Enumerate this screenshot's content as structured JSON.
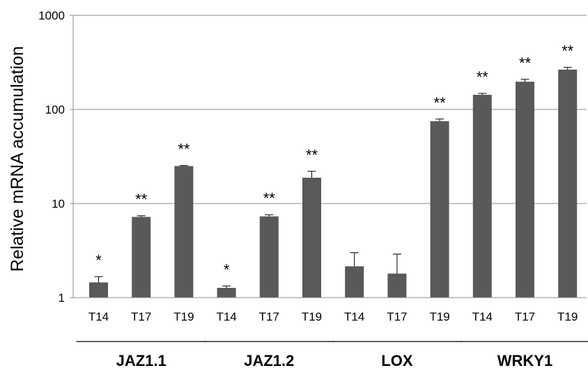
{
  "chart_data": {
    "type": "bar",
    "title": "",
    "xlabel": "",
    "ylabel": "Relative mRNA accumulation",
    "yscale": "log",
    "ylim": [
      1,
      1000
    ],
    "yticks": [
      {
        "value": 1,
        "label": "1"
      },
      {
        "value": 10,
        "label": "10"
      },
      {
        "value": 100,
        "label": "100"
      },
      {
        "value": 1000,
        "label": "1000"
      }
    ],
    "grid": "horizontal",
    "bar_color": "#595959",
    "groups": [
      {
        "label": "JAZ1.1",
        "bars": [
          {
            "category": "T14",
            "value": 1.45,
            "error": 0.22,
            "significance": "*"
          },
          {
            "category": "T17",
            "value": 7.2,
            "error": 0.2,
            "significance": "**"
          },
          {
            "category": "T19",
            "value": 25.0,
            "error": 0.3,
            "significance": "**"
          }
        ]
      },
      {
        "label": "JAZ1.2",
        "bars": [
          {
            "category": "T14",
            "value": 1.27,
            "error": 0.06,
            "significance": "*"
          },
          {
            "category": "T17",
            "value": 7.3,
            "error": 0.3,
            "significance": "**"
          },
          {
            "category": "T19",
            "value": 18.8,
            "error": 3.2,
            "significance": "**"
          }
        ]
      },
      {
        "label": "LOX",
        "bars": [
          {
            "category": "T14",
            "value": 2.15,
            "error": 0.85,
            "significance": ""
          },
          {
            "category": "T17",
            "value": 1.8,
            "error": 1.1,
            "significance": ""
          },
          {
            "category": "T19",
            "value": 75.0,
            "error": 4.0,
            "significance": "**"
          }
        ]
      },
      {
        "label": "WRKY1",
        "bars": [
          {
            "category": "T14",
            "value": 143.0,
            "error": 5.0,
            "significance": "**"
          },
          {
            "category": "T17",
            "value": 197.0,
            "error": 12.0,
            "significance": "**"
          },
          {
            "category": "T19",
            "value": 265.0,
            "error": 15.0,
            "significance": "**"
          }
        ]
      }
    ]
  }
}
